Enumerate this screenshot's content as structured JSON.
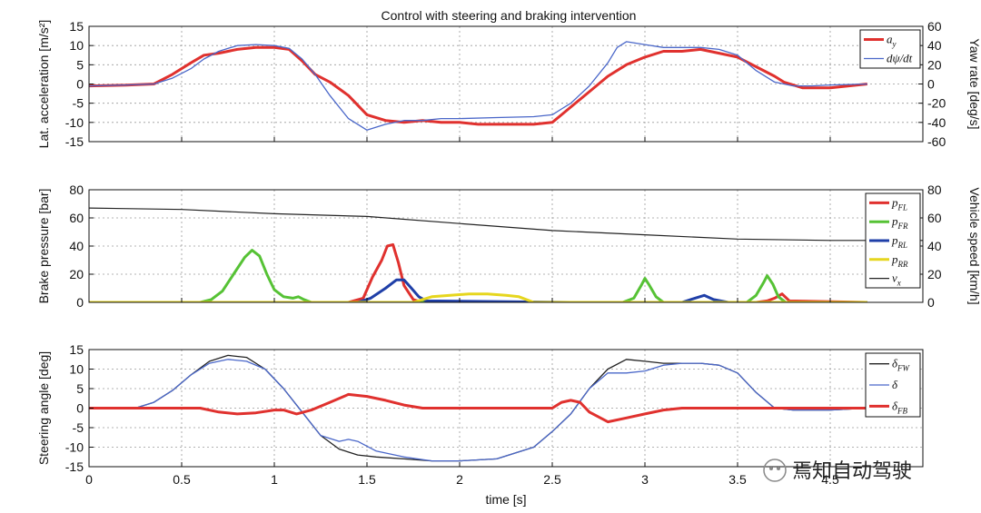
{
  "figure_title": "Control with steering and braking intervention",
  "watermark": "焉知自动驾驶",
  "colors": {
    "red": "#e0312e",
    "blue": "#4a67c9",
    "green": "#56c235",
    "navy": "#1f3fa8",
    "yellow": "#e6d61e",
    "black": "#222222",
    "grid": "#9a9a9a"
  },
  "chart_data": [
    {
      "type": "line",
      "title": "Control with steering and braking intervention",
      "xlabel": "time [s]",
      "ylabel": "Lat. acceleration [m/s²]",
      "ylabel_right": "Yaw rate [deg/s]",
      "xlim": [
        0,
        4.5
      ],
      "ylim": [
        -15,
        15
      ],
      "ylim_right": [
        -60,
        60
      ],
      "xticks": [
        "0",
        "0.5",
        "1",
        "1.5",
        "2",
        "2.5",
        "3",
        "3.5",
        "4.5"
      ],
      "yticks": [
        "-15",
        "-10",
        "-5",
        "0",
        "5",
        "10",
        "15"
      ],
      "yticks_right": [
        "-60",
        "-40",
        "-20",
        "0",
        "20",
        "40",
        "60"
      ],
      "grid": true,
      "legend": "top-right",
      "series": [
        {
          "name": "a_y",
          "legend_main": "a",
          "legend_sub": "y",
          "color": "red",
          "width": 3,
          "axis": "left",
          "x": [
            0,
            0.2,
            0.35,
            0.45,
            0.55,
            0.62,
            0.7,
            0.8,
            0.9,
            1.0,
            1.08,
            1.15,
            1.22,
            1.3,
            1.4,
            1.5,
            1.6,
            1.7,
            1.8,
            1.9,
            2.0,
            2.1,
            2.2,
            2.3,
            2.4,
            2.5,
            2.55,
            2.6,
            2.7,
            2.8,
            2.9,
            3.0,
            3.1,
            3.2,
            3.3,
            3.4,
            3.5,
            3.6,
            3.7,
            3.75,
            3.85,
            4.0,
            4.1,
            4.2
          ],
          "y": [
            -0.5,
            -0.3,
            0,
            2.5,
            5.5,
            7.5,
            8,
            9,
            9.5,
            9.5,
            9,
            6,
            2.5,
            0.5,
            -3,
            -8,
            -9.5,
            -10,
            -9.5,
            -10,
            -10,
            -10.5,
            -10.5,
            -10.5,
            -10.5,
            -10,
            -8,
            -6,
            -2,
            2,
            5,
            7,
            8.5,
            8.5,
            9,
            8,
            7,
            4.5,
            2,
            0.5,
            -1,
            -1,
            -0.5,
            0
          ]
        },
        {
          "name": "dψ/dt",
          "legend_main": "dψ/dt",
          "legend_sub": "",
          "color": "blue",
          "width": 1.3,
          "axis": "right",
          "x": [
            0,
            0.2,
            0.35,
            0.45,
            0.55,
            0.62,
            0.7,
            0.8,
            0.9,
            1.0,
            1.08,
            1.15,
            1.22,
            1.3,
            1.4,
            1.5,
            1.6,
            1.7,
            1.8,
            1.9,
            2.0,
            2.2,
            2.4,
            2.5,
            2.55,
            2.6,
            2.7,
            2.8,
            2.85,
            2.9,
            3.0,
            3.1,
            3.2,
            3.3,
            3.4,
            3.5,
            3.6,
            3.7,
            3.8,
            3.9,
            4.0,
            4.2
          ],
          "y": [
            -2,
            -1,
            0,
            6,
            16,
            26,
            34,
            40,
            41,
            40,
            37,
            26,
            10,
            -12,
            -36,
            -48,
            -42,
            -38,
            -38,
            -36,
            -36,
            -35,
            -34,
            -32,
            -26,
            -20,
            -2,
            22,
            38,
            44,
            41,
            38,
            38,
            38,
            36,
            30,
            14,
            2,
            -2,
            -2,
            -1,
            0
          ]
        }
      ]
    },
    {
      "type": "line",
      "xlabel": "time [s]",
      "ylabel": "Brake pressure [bar]",
      "ylabel_right": "Vehicle speed [km/h]",
      "xlim": [
        0,
        4.5
      ],
      "ylim": [
        0,
        80
      ],
      "ylim_right": [
        0,
        80
      ],
      "yticks": [
        "0",
        "20",
        "40",
        "60",
        "80"
      ],
      "yticks_right": [
        "0",
        "20",
        "40",
        "60",
        "80"
      ],
      "grid": true,
      "legend": "top-right",
      "series": [
        {
          "name": "p_FL",
          "legend_main": "p",
          "legend_sub": "FL",
          "color": "red",
          "width": 3,
          "axis": "left",
          "x": [
            0,
            1.4,
            1.48,
            1.53,
            1.58,
            1.61,
            1.64,
            1.67,
            1.7,
            1.75,
            1.8,
            3.6,
            3.66,
            3.7,
            3.74,
            3.78,
            4.2
          ],
          "y": [
            0,
            0,
            3,
            18,
            30,
            40,
            41,
            28,
            12,
            2,
            0,
            0,
            1,
            3,
            6,
            1,
            0
          ]
        },
        {
          "name": "p_FR",
          "legend_main": "p",
          "legend_sub": "FR",
          "color": "green",
          "width": 3,
          "axis": "left",
          "x": [
            0,
            0.6,
            0.66,
            0.72,
            0.78,
            0.84,
            0.88,
            0.92,
            0.96,
            1.0,
            1.05,
            1.1,
            1.13,
            1.16,
            1.2,
            2.88,
            2.94,
            2.98,
            3.0,
            3.02,
            3.06,
            3.1,
            3.55,
            3.6,
            3.64,
            3.66,
            3.69,
            3.72,
            3.76,
            4.2
          ],
          "y": [
            0,
            0,
            2,
            8,
            20,
            32,
            37,
            33,
            20,
            9,
            4,
            3,
            4,
            2,
            0,
            0,
            3,
            12,
            17,
            13,
            4,
            0,
            0,
            5,
            14,
            19,
            13,
            4,
            0,
            0
          ]
        },
        {
          "name": "p_RL",
          "legend_main": "p",
          "legend_sub": "RL",
          "color": "navy",
          "width": 3,
          "axis": "left",
          "x": [
            0,
            1.45,
            1.52,
            1.6,
            1.66,
            1.7,
            1.74,
            1.78,
            1.82,
            2.6,
            3.2,
            3.27,
            3.32,
            3.37,
            3.45,
            4.2
          ],
          "y": [
            0,
            0,
            3,
            10,
            16,
            16,
            10,
            4,
            1,
            0,
            0,
            3,
            5,
            2,
            0,
            0
          ]
        },
        {
          "name": "p_RR",
          "legend_main": "p",
          "legend_sub": "RR",
          "color": "yellow",
          "width": 3,
          "axis": "left",
          "x": [
            0,
            1.75,
            1.85,
            1.95,
            2.05,
            2.15,
            2.25,
            2.32,
            2.4,
            4.2
          ],
          "y": [
            0,
            0,
            4,
            5,
            6,
            6,
            5,
            4,
            0,
            0
          ]
        },
        {
          "name": "v_x",
          "legend_main": "v",
          "legend_sub": "x",
          "color": "black",
          "width": 1.2,
          "axis": "right",
          "x": [
            0,
            0.5,
            1.0,
            1.5,
            2.0,
            2.5,
            3.0,
            3.5,
            4.0,
            4.5
          ],
          "y": [
            67,
            66,
            63,
            61,
            56,
            51,
            48,
            45,
            44,
            44
          ]
        }
      ]
    },
    {
      "type": "line",
      "xlabel": "time [s]",
      "ylabel": "Steering angle [deg]",
      "xlim": [
        0,
        4.5
      ],
      "ylim": [
        -15,
        15
      ],
      "yticks": [
        "-15",
        "-10",
        "-5",
        "0",
        "5",
        "10",
        "15"
      ],
      "grid": true,
      "legend": "top-right",
      "series": [
        {
          "name": "δ_FW",
          "legend_main": "δ",
          "legend_sub": "FW",
          "color": "black",
          "width": 1.3,
          "axis": "left",
          "x": [
            0,
            0.25,
            0.35,
            0.45,
            0.55,
            0.65,
            0.75,
            0.85,
            0.95,
            1.05,
            1.15,
            1.25,
            1.35,
            1.45,
            1.55,
            1.7,
            1.85,
            2.0,
            2.2,
            2.4,
            2.5,
            2.6,
            2.7,
            2.8,
            2.9,
            3.0,
            3.1,
            3.2,
            3.3,
            3.4,
            3.5,
            3.6,
            3.7,
            3.8,
            4.0,
            4.2
          ],
          "y": [
            0,
            0,
            1.5,
            4.5,
            8.5,
            12,
            13.5,
            13,
            10,
            5,
            -1,
            -7,
            -10.5,
            -12,
            -12.5,
            -13,
            -13.5,
            -13.5,
            -13,
            -10,
            -6,
            -1.5,
            5,
            10,
            12.5,
            12,
            11.5,
            11.5,
            11.5,
            11,
            9,
            4,
            0,
            -0.5,
            -0.5,
            0
          ]
        },
        {
          "name": "δ",
          "legend_main": "δ",
          "legend_sub": "",
          "color": "blue",
          "width": 1.3,
          "axis": "left",
          "x": [
            0,
            0.25,
            0.35,
            0.45,
            0.55,
            0.65,
            0.75,
            0.85,
            0.95,
            1.05,
            1.15,
            1.25,
            1.35,
            1.4,
            1.45,
            1.55,
            1.7,
            1.85,
            2.0,
            2.2,
            2.4,
            2.5,
            2.6,
            2.7,
            2.8,
            2.9,
            3.0,
            3.1,
            3.2,
            3.3,
            3.4,
            3.5,
            3.6,
            3.7,
            3.8,
            4.0,
            4.2
          ],
          "y": [
            0,
            0,
            1.5,
            4.5,
            8.5,
            11.5,
            12.5,
            12,
            10,
            5,
            -1,
            -7,
            -8.5,
            -8,
            -8.5,
            -11,
            -12.5,
            -13.5,
            -13.5,
            -13,
            -10,
            -6,
            -1.5,
            5,
            9,
            9,
            9.5,
            11,
            11.5,
            11.5,
            11,
            9,
            4,
            0,
            -0.5,
            -0.5,
            0
          ]
        },
        {
          "name": "δ_FB",
          "legend_main": "δ",
          "legend_sub": "FB",
          "color": "red",
          "width": 3,
          "axis": "left",
          "x": [
            0,
            0.6,
            0.7,
            0.8,
            0.9,
            1.0,
            1.05,
            1.12,
            1.2,
            1.3,
            1.4,
            1.5,
            1.6,
            1.7,
            1.8,
            2.5,
            2.55,
            2.6,
            2.65,
            2.7,
            2.8,
            2.9,
            3.0,
            3.1,
            3.2,
            3.3,
            4.2
          ],
          "y": [
            0,
            0,
            -1,
            -1.5,
            -1.2,
            -0.5,
            -0.5,
            -1.5,
            -0.5,
            1.5,
            3.5,
            3,
            2,
            0.8,
            0,
            0,
            1.5,
            2,
            1.5,
            -1,
            -3.5,
            -2.5,
            -1.5,
            -0.5,
            0,
            0,
            0
          ]
        }
      ]
    }
  ]
}
